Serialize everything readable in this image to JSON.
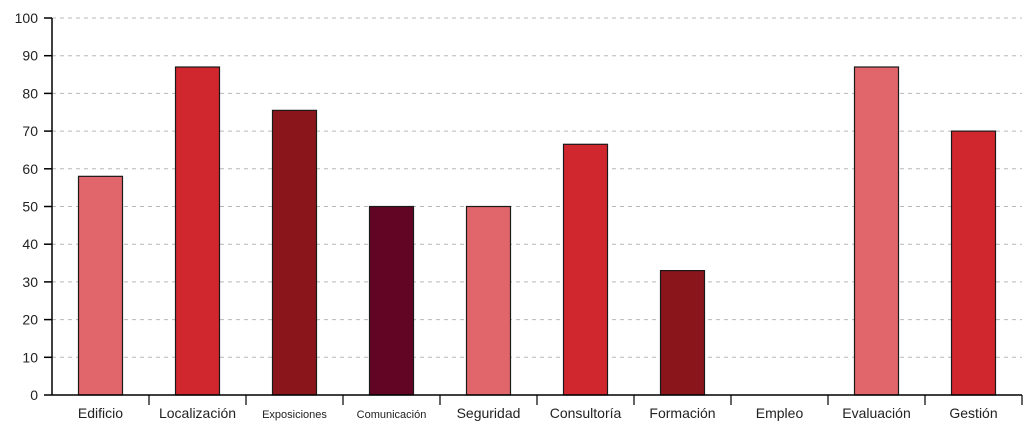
{
  "chart_data": {
    "type": "bar",
    "categories": [
      "Edificio",
      "Localización",
      "Exposiciones",
      "Comunicación",
      "Seguridad",
      "Consultoría",
      "Formación",
      "Empleo",
      "Evaluación",
      "Gestión"
    ],
    "values": [
      58,
      87,
      75.5,
      50,
      50,
      66.5,
      33,
      0,
      87,
      70
    ],
    "bar_colors": [
      "#e0666b",
      "#d0262d",
      "#8a161c",
      "#620424",
      "#e0666b",
      "#d0262d",
      "#8a161c",
      "#d0262d",
      "#e0666b",
      "#d0262d"
    ],
    "yticks": [
      0,
      10,
      20,
      30,
      40,
      50,
      60,
      70,
      80,
      90,
      100
    ],
    "ylim": [
      0,
      100
    ],
    "grid": true,
    "title": "",
    "xlabel": "",
    "ylabel": ""
  }
}
